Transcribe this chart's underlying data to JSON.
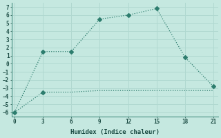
{
  "line1_x": [
    0,
    3,
    6,
    9,
    12,
    15,
    18,
    21
  ],
  "line1_y": [
    -6,
    -3.5,
    -3.5,
    -3.3,
    -3.3,
    -3.3,
    -3.3,
    -3.3
  ],
  "line2_x": [
    0,
    3,
    6,
    9,
    12,
    15,
    18,
    21
  ],
  "line2_y": [
    -6,
    1.5,
    1.5,
    5.5,
    6.0,
    6.8,
    0.8,
    -2.8
  ],
  "line_color": "#2d7d6e",
  "background_color": "#c5e8e0",
  "grid_color": "#b0d8d0",
  "xlabel": "Humidex (Indice chaleur)",
  "ylim": [
    -6.5,
    7.5
  ],
  "xlim": [
    -0.3,
    21.5
  ],
  "yticks": [
    -6,
    -5,
    -4,
    -3,
    -2,
    -1,
    0,
    1,
    2,
    3,
    4,
    5,
    6,
    7
  ],
  "xticks": [
    0,
    3,
    6,
    9,
    12,
    15,
    18,
    21
  ]
}
